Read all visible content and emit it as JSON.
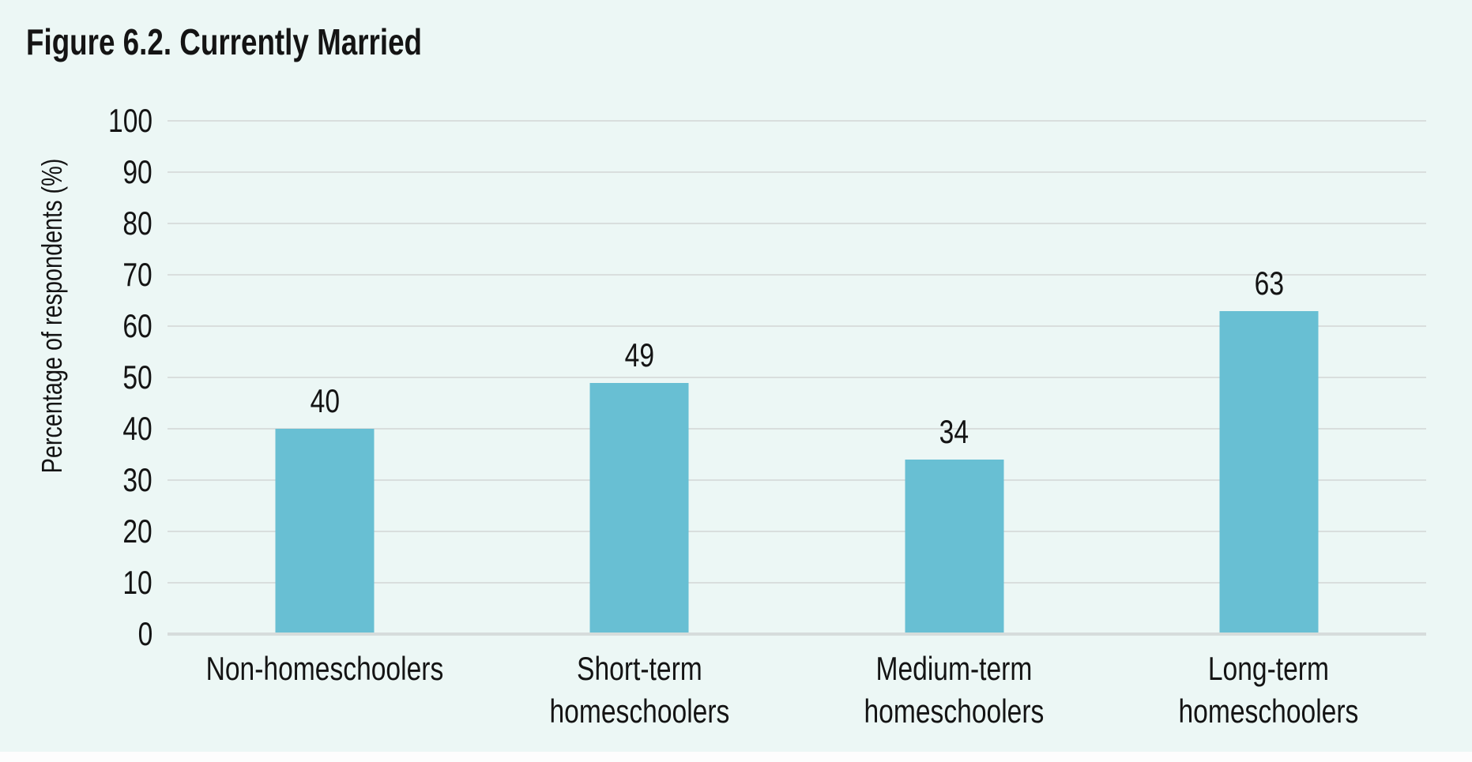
{
  "page": {
    "title": "Figure 6.2. Currently Married"
  },
  "colors": {
    "background": "#ecf7f5",
    "bar": "#68bfd3",
    "gridline": "#d9dedd",
    "baseline": "#d6dcdb",
    "text": "#141414",
    "footer_strip": "#fdfdfd"
  },
  "chart_data": {
    "type": "bar",
    "title": "Figure 6.2. Currently Married",
    "xlabel": "",
    "ylabel": "Percentage of respondents (%)",
    "ylim": [
      0,
      100
    ],
    "yticks": [
      0,
      10,
      20,
      30,
      40,
      50,
      60,
      70,
      80,
      90,
      100
    ],
    "grid": true,
    "legend": false,
    "value_labels_shown": true,
    "categories": [
      "Non-homeschoolers",
      "Short-term homeschoolers",
      "Medium-term homeschoolers",
      "Long-term homeschoolers"
    ],
    "category_label_lines": [
      [
        "Non-homeschoolers"
      ],
      [
        "Short-term",
        "homeschoolers"
      ],
      [
        "Medium-term",
        "homeschoolers"
      ],
      [
        "Long-term",
        "homeschoolers"
      ]
    ],
    "values": [
      40,
      49,
      34,
      63
    ]
  }
}
